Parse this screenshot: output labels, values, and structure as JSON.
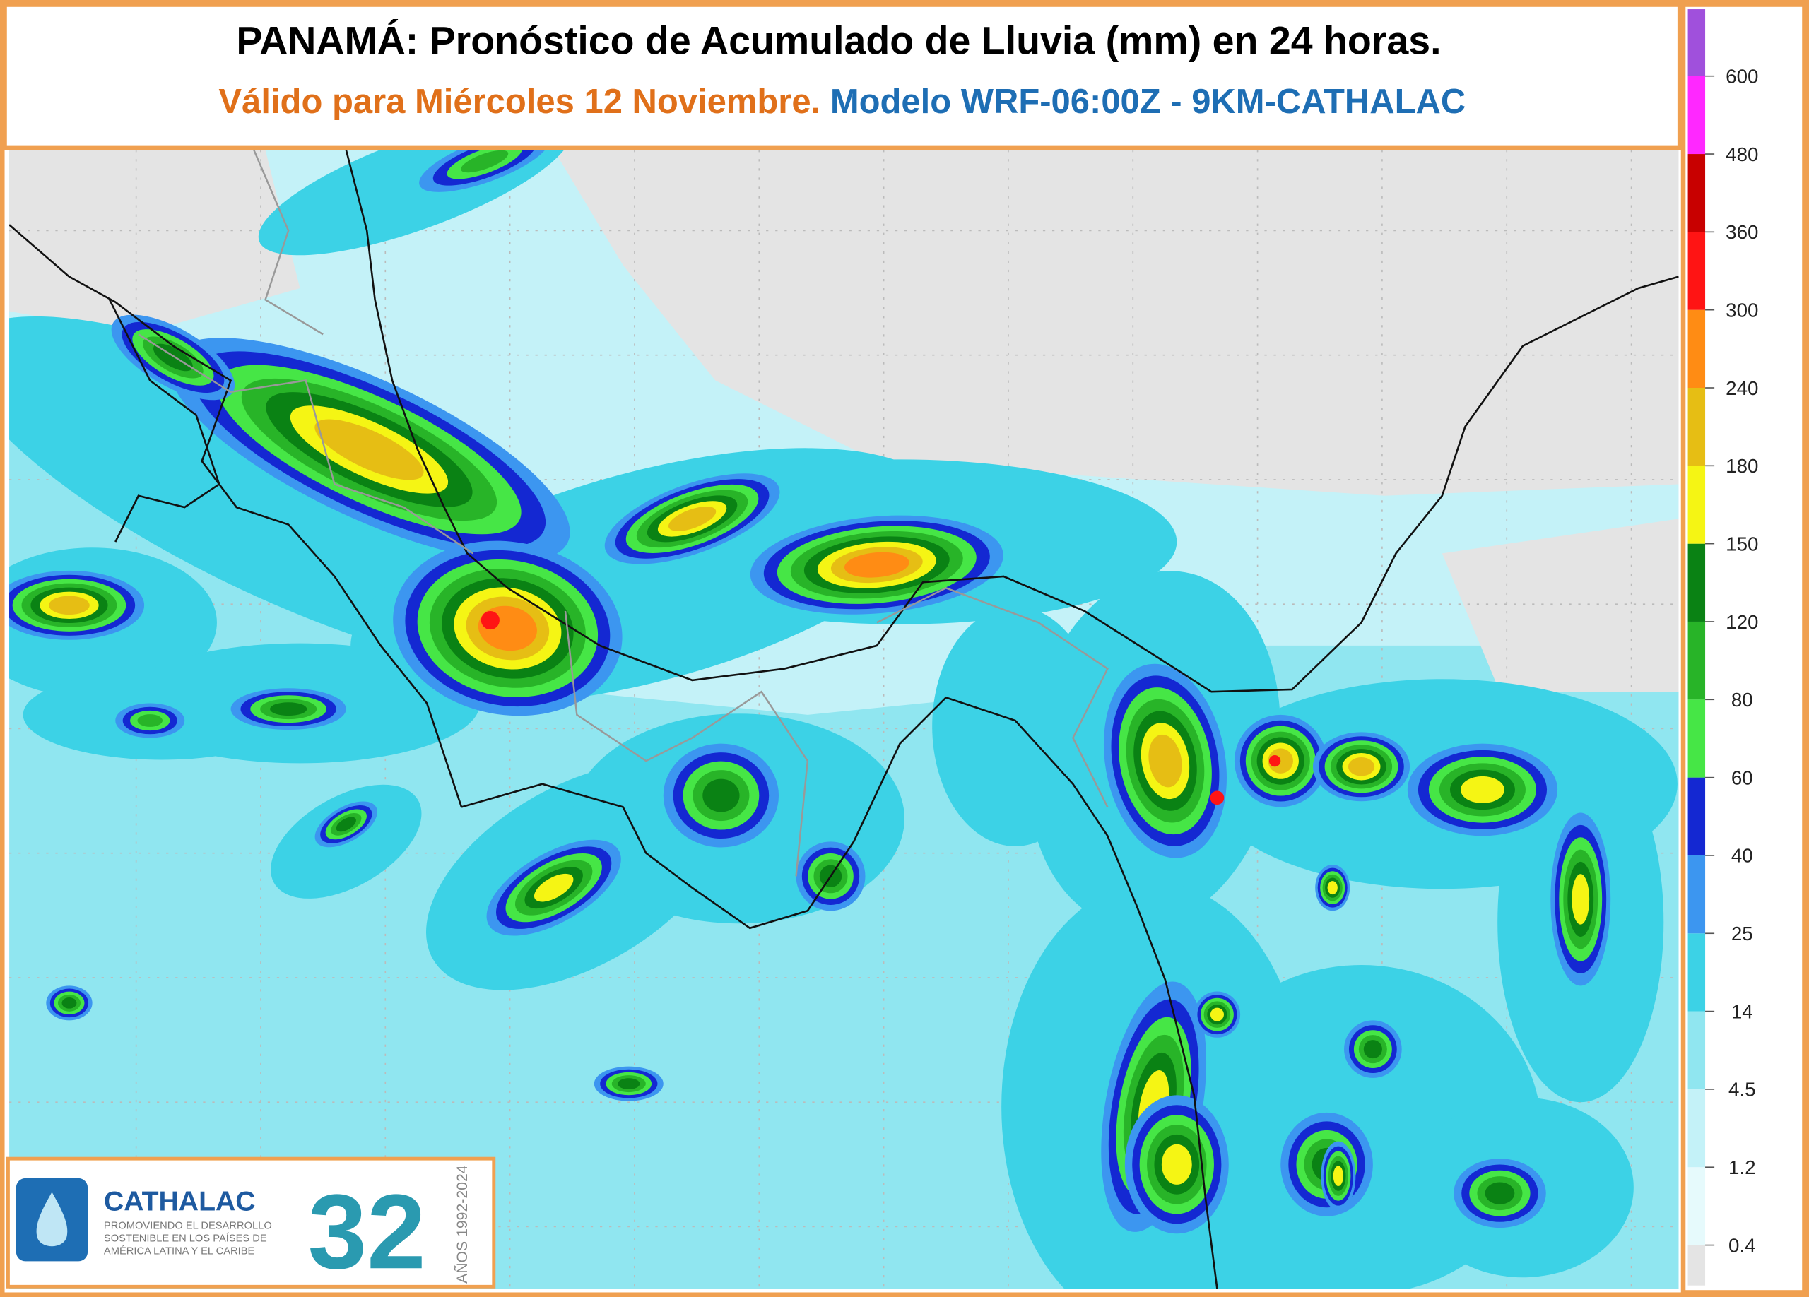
{
  "header": {
    "title": "PANAMÁ: Pronóstico de Acumulado de Lluvia (mm) en 24 horas.",
    "valid": "Válido para Miércoles 12 Noviembre.",
    "model": "Modelo WRF-06:00Z - 9KM-CATHALAC"
  },
  "colorbar": {
    "ticks": [
      0.4,
      1.2,
      4.5,
      14,
      25,
      40,
      60,
      80,
      120,
      150,
      180,
      240,
      300,
      360,
      480,
      600
    ],
    "colors": [
      "#e4e4e4",
      "#e6fafc",
      "#c4f2f8",
      "#90e6f0",
      "#3cd2e6",
      "#3c96f0",
      "#1428d2",
      "#46e646",
      "#28b428",
      "#0a8214",
      "#f5f514",
      "#e6be14",
      "#ff8c14",
      "#ff1414",
      "#c80000",
      "#ff28ff",
      "#a050dc"
    ]
  },
  "logo": {
    "name": "CATHALAC",
    "tagline": [
      "PROMOVIENDO EL DESARROLLO",
      "SOSTENIBLE EN LOS PAÍSES DE",
      "AMÉRICA LATINA Y EL CARIBE"
    ],
    "number": "32",
    "years": "AÑOS 1992-2024"
  }
}
